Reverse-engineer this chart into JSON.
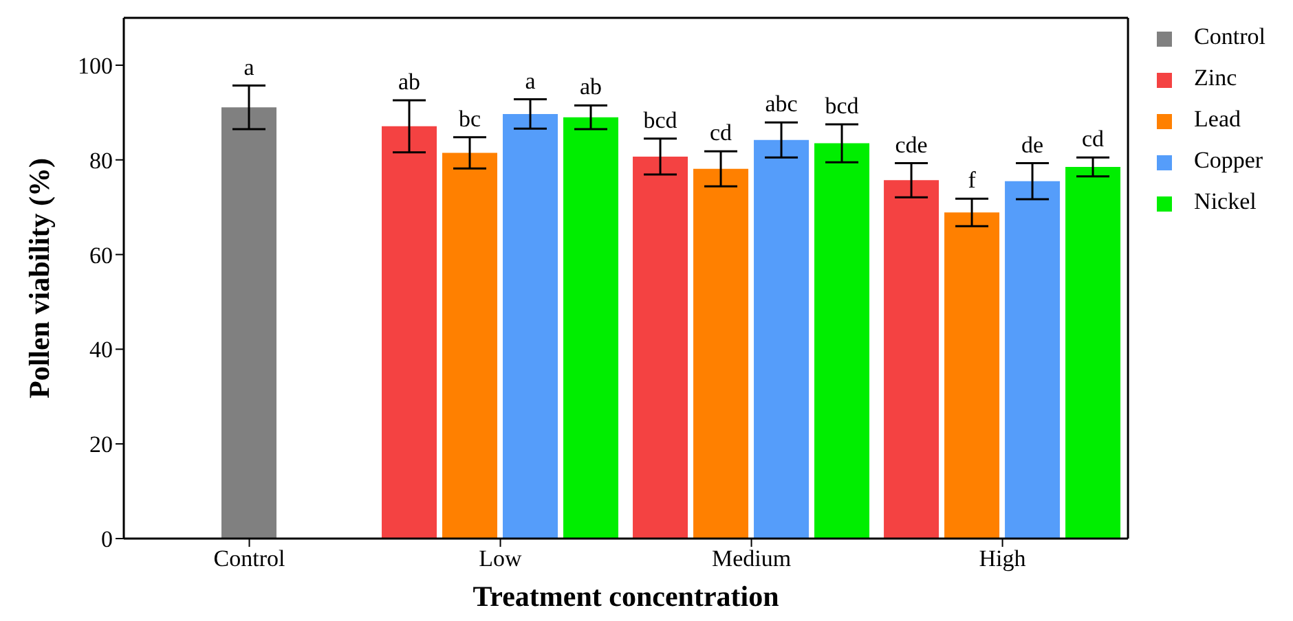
{
  "chart_data": {
    "type": "bar",
    "xlabel": "Treatment concentration",
    "ylabel": "Pollen viability (%)",
    "categories": [
      "Control",
      "Low",
      "Medium",
      "High"
    ],
    "series": [
      {
        "name": "Control",
        "color": "#808080",
        "values": [
          91.1,
          null,
          null,
          null
        ],
        "errors": [
          4.6,
          null,
          null,
          null
        ],
        "value_labels": [
          "a",
          null,
          null,
          null
        ]
      },
      {
        "name": "Zinc",
        "color": "#f44242",
        "values": [
          null,
          87.1,
          80.7,
          75.7
        ],
        "errors": [
          null,
          5.5,
          3.8,
          3.6
        ],
        "value_labels": [
          null,
          "ab",
          "bcd",
          "cde"
        ]
      },
      {
        "name": "Lead",
        "color": "#ff8000",
        "values": [
          null,
          81.5,
          78.1,
          68.9
        ],
        "errors": [
          null,
          3.3,
          3.7,
          2.9
        ],
        "value_labels": [
          null,
          "bc",
          "cd",
          "f"
        ]
      },
      {
        "name": "Copper",
        "color": "#559dfa",
        "values": [
          null,
          89.7,
          84.2,
          75.5
        ],
        "errors": [
          null,
          3.1,
          3.7,
          3.8
        ],
        "value_labels": [
          null,
          "a",
          "abc",
          "de"
        ]
      },
      {
        "name": "Nickel",
        "color": "#00ee00",
        "values": [
          null,
          89.0,
          83.5,
          78.5
        ],
        "errors": [
          null,
          2.5,
          4,
          2
        ],
        "value_labels": [
          null,
          "ab",
          "bcd",
          "cd"
        ]
      }
    ],
    "ylim": [
      0,
      110
    ],
    "yticks": [
      0,
      20,
      40,
      60,
      80,
      100
    ],
    "grid": false,
    "legend": "top right"
  }
}
